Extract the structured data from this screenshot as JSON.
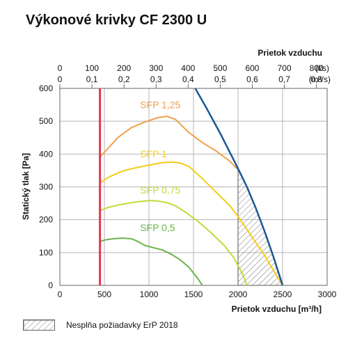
{
  "chart_data": {
    "type": "line",
    "title": "Výkonové krivky CF 2300 U",
    "xlabel": "Prietok vzduchu [m³/h]",
    "ylabel": "Statický tlak [Pa]",
    "top_axis_title": "Prietok vzduchu",
    "xlim": [
      0,
      3000
    ],
    "ylim": [
      0,
      600
    ],
    "x_ticks": [
      0,
      500,
      1000,
      1500,
      2000,
      2500,
      3000
    ],
    "y_ticks": [
      0,
      100,
      200,
      300,
      400,
      500,
      600
    ],
    "top_ls_ticks": [
      "0",
      "100",
      "200",
      "300",
      "400",
      "500",
      "600",
      "700",
      "800"
    ],
    "top_ls_unit": "(l/s)",
    "top_m3s_ticks": [
      "0",
      "0,1",
      "0,2",
      "0,3",
      "0,4",
      "0,5",
      "0,6",
      "0,7",
      "0,8"
    ],
    "top_m3s_unit": "(m³/s)",
    "grid": true,
    "colors": {
      "min_line": "#e8344e",
      "max_curve": "#1a5894",
      "sfp_125": "#f0a04a",
      "sfp_1": "#f4cc1a",
      "sfp_075": "#bcdc3a",
      "sfp_05": "#6ab44a",
      "hatch": "#777777"
    },
    "min_flow_line": {
      "x": 450,
      "y_range": [
        0,
        600
      ]
    },
    "max_curve": {
      "x": [
        1520,
        1650,
        1800,
        1950,
        2010,
        2100,
        2200,
        2300,
        2400,
        2500
      ],
      "y": [
        600,
        538,
        463,
        383,
        350,
        300,
        235,
        163,
        85,
        0
      ]
    },
    "series": [
      {
        "name": "SFP 1,25",
        "x": [
          450,
          500,
          650,
          800,
          950,
          1100,
          1200,
          1300,
          1450,
          1600,
          1750,
          1900,
          2010
        ],
        "y": [
          392,
          405,
          450,
          480,
          497,
          511,
          515,
          505,
          465,
          435,
          410,
          380,
          350
        ]
      },
      {
        "name": "SFP 1",
        "x": [
          450,
          550,
          700,
          850,
          1000,
          1150,
          1250,
          1350,
          1450,
          1600,
          1750,
          1900,
          2000,
          2100,
          2200,
          2300,
          2400,
          2500
        ],
        "y": [
          312,
          330,
          348,
          358,
          366,
          374,
          376,
          373,
          362,
          325,
          285,
          245,
          210,
          170,
          130,
          90,
          45,
          0
        ]
      },
      {
        "name": "SFP 0,75",
        "x": [
          450,
          550,
          700,
          850,
          1000,
          1100,
          1200,
          1300,
          1400,
          1550,
          1700,
          1850,
          1950,
          2050,
          2100
        ],
        "y": [
          228,
          238,
          247,
          254,
          258,
          257,
          252,
          242,
          225,
          195,
          160,
          120,
          85,
          35,
          0
        ]
      },
      {
        "name": "SFP 0,5",
        "x": [
          450,
          500,
          600,
          700,
          800,
          850,
          900,
          950,
          1050,
          1150,
          1250,
          1350,
          1450,
          1550,
          1600
        ],
        "y": [
          133,
          138,
          142,
          144,
          142,
          137,
          130,
          122,
          115,
          108,
          95,
          78,
          55,
          20,
          0
        ]
      }
    ],
    "legend": {
      "label": "Nesplňa požiadavky ErP 2018",
      "placement": "bottom-left"
    }
  }
}
